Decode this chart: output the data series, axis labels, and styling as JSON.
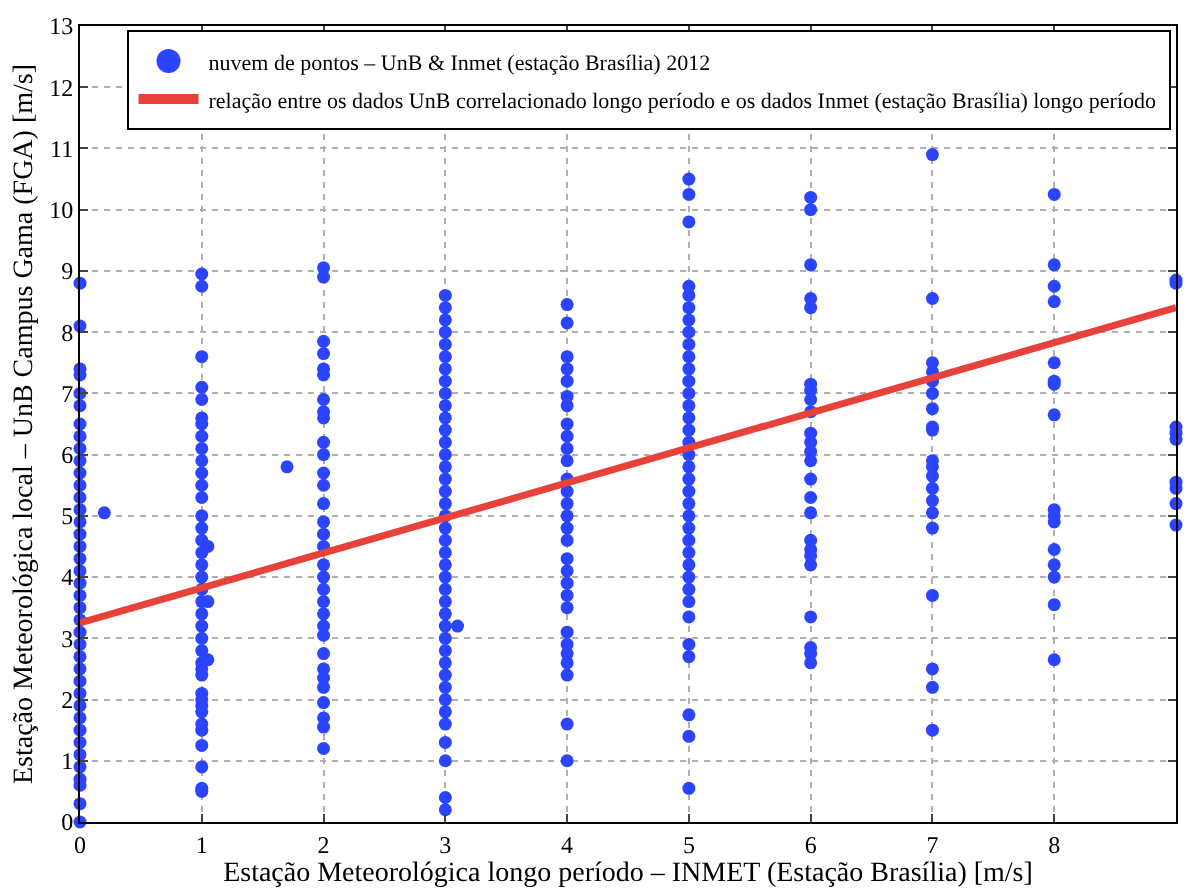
{
  "chart_data": {
    "type": "scatter",
    "xlabel": "Estação Meteorológica longo período – INMET (Estação Brasília) [m/s]",
    "ylabel": "Estação Meteorológica local – UnB Campus Gama (FGA) [m/s]",
    "xlim": [
      0,
      9
    ],
    "xticks": [
      0,
      1,
      2,
      3,
      4,
      5,
      6,
      7,
      8
    ],
    "ylim": [
      0,
      13
    ],
    "yticks": [
      0,
      1,
      2,
      3,
      4,
      5,
      6,
      7,
      8,
      9,
      10,
      11,
      12,
      13
    ],
    "grid": true,
    "legend": "top right",
    "series": [
      {
        "name": "nuvem de pontos – UnB & Inmet (estação Brasília) 2012",
        "marker": "circle",
        "color": "#2b44ff",
        "x": [
          0,
          0,
          0,
          0,
          0,
          0,
          0,
          0,
          0,
          0,
          0,
          0,
          0,
          0,
          0,
          0,
          0,
          0,
          0,
          0,
          0,
          0,
          0,
          0,
          0,
          0,
          0,
          0,
          0,
          0,
          0,
          0,
          0,
          0,
          0,
          0,
          0,
          0,
          0,
          0.2,
          1,
          1,
          1,
          1,
          1,
          1,
          1,
          1,
          1,
          1,
          1,
          1,
          1,
          1,
          1,
          1,
          1,
          1,
          1,
          1,
          1,
          1,
          1,
          1,
          1,
          1,
          1,
          1,
          1,
          1,
          1,
          1,
          1,
          1,
          1,
          1,
          1,
          1,
          1.05,
          1.05,
          1.05,
          1.7,
          2,
          2,
          2,
          2,
          2,
          2,
          2,
          2,
          2,
          2,
          2,
          2,
          2,
          2,
          2,
          2,
          2,
          2,
          2,
          2,
          2,
          2,
          2,
          2,
          2,
          2,
          2,
          2,
          2,
          2,
          2,
          2,
          3,
          3,
          3,
          3,
          3,
          3,
          3,
          3,
          3,
          3,
          3,
          3,
          3,
          3,
          3,
          3,
          3,
          3,
          3,
          3,
          3,
          3,
          3,
          3,
          3,
          3,
          3,
          3,
          3,
          3,
          3,
          3,
          3,
          3,
          3,
          3,
          3,
          3,
          3,
          3,
          3.1,
          4,
          4,
          4,
          4,
          4,
          4,
          4,
          4,
          4,
          4,
          4,
          4,
          4,
          4,
          4,
          4,
          4,
          4,
          4,
          4,
          4,
          4,
          4,
          4,
          4,
          4,
          4,
          4,
          4,
          5,
          5,
          5,
          5,
          5,
          5,
          5,
          5,
          5,
          5,
          5,
          5,
          5,
          5,
          5,
          5,
          5,
          5,
          5,
          5,
          5,
          5,
          5,
          5,
          5,
          5,
          5,
          5,
          5,
          5,
          5,
          5,
          5,
          5,
          5,
          5,
          6,
          6,
          6,
          6,
          6,
          6,
          6,
          6,
          6,
          6,
          6,
          6,
          6,
          6,
          6,
          6,
          6,
          6,
          6,
          6,
          6,
          6,
          6,
          6,
          7,
          7,
          7,
          7,
          7,
          7,
          7,
          7,
          7,
          7,
          7,
          7,
          7,
          7,
          7,
          7,
          7,
          7,
          7,
          7,
          8,
          8,
          8,
          8,
          8,
          8,
          8,
          8,
          8,
          8,
          8,
          8,
          8,
          8,
          8,
          8,
          9,
          9,
          9,
          9,
          9,
          9,
          9,
          9,
          9
        ],
        "values": [
          0,
          0.3,
          0.6,
          0.7,
          0.9,
          1.1,
          1.3,
          1.5,
          1.7,
          1.9,
          2.1,
          2.3,
          2.5,
          2.7,
          2.9,
          3.1,
          3.3,
          3.5,
          3.7,
          3.9,
          4.1,
          4.3,
          4.5,
          4.7,
          4.9,
          5.1,
          5.3,
          5.5,
          5.7,
          5.9,
          6.1,
          6.3,
          6.5,
          6.8,
          7.0,
          7.3,
          7.4,
          8.1,
          8.8,
          5.05,
          0.5,
          0.55,
          0.9,
          1.25,
          1.5,
          1.6,
          1.8,
          1.9,
          2.0,
          2.1,
          2.4,
          2.5,
          2.6,
          2.8,
          3.0,
          3.2,
          3.4,
          3.6,
          3.8,
          4.0,
          4.2,
          4.4,
          4.6,
          4.8,
          5.0,
          5.3,
          5.5,
          5.7,
          5.9,
          6.1,
          6.3,
          6.5,
          6.6,
          6.9,
          7.1,
          7.6,
          8.75,
          8.95,
          4.5,
          3.6,
          2.65,
          5.8,
          1.2,
          1.55,
          1.7,
          1.95,
          2.2,
          2.35,
          2.5,
          2.75,
          3.05,
          3.2,
          3.4,
          3.6,
          3.8,
          4.0,
          4.2,
          4.5,
          4.7,
          4.9,
          5.2,
          5.5,
          5.7,
          6.0,
          6.2,
          6.6,
          6.7,
          6.9,
          7.3,
          7.4,
          7.65,
          7.85,
          8.9,
          9.05,
          0.2,
          0.4,
          1.0,
          1.3,
          1.6,
          1.8,
          2.0,
          2.2,
          2.4,
          2.6,
          2.8,
          3.0,
          3.2,
          3.4,
          3.6,
          3.8,
          4.0,
          4.2,
          4.4,
          4.6,
          4.8,
          5.0,
          5.2,
          5.4,
          5.6,
          5.8,
          6.0,
          6.2,
          6.4,
          6.6,
          6.8,
          7.0,
          7.2,
          7.4,
          7.6,
          7.8,
          8.0,
          8.2,
          8.4,
          8.6,
          3.2,
          1.0,
          1.6,
          2.4,
          2.6,
          2.75,
          2.9,
          3.1,
          3.5,
          3.7,
          3.9,
          4.1,
          4.3,
          4.6,
          4.8,
          5.0,
          5.2,
          5.4,
          5.6,
          5.9,
          6.1,
          6.3,
          6.5,
          6.8,
          6.95,
          7.2,
          7.4,
          7.6,
          8.15,
          8.45,
          0.55,
          1.4,
          1.75,
          2.7,
          2.9,
          3.35,
          3.6,
          3.8,
          4.0,
          4.2,
          4.4,
          4.6,
          4.8,
          5.0,
          5.2,
          5.4,
          5.6,
          5.8,
          6.0,
          6.2,
          6.4,
          6.6,
          6.8,
          7.0,
          7.2,
          7.4,
          7.6,
          7.8,
          8.0,
          8.2,
          8.4,
          8.6,
          8.75,
          9.8,
          10.25,
          10.5,
          2.6,
          2.75,
          2.85,
          3.35,
          4.2,
          4.35,
          4.45,
          4.6,
          5.05,
          5.3,
          5.6,
          5.9,
          6.05,
          6.2,
          6.35,
          6.7,
          6.9,
          7.05,
          7.15,
          8.4,
          8.55,
          9.1,
          10.0,
          10.2,
          1.5,
          2.2,
          2.5,
          3.7,
          4.8,
          5.05,
          5.25,
          5.45,
          5.65,
          5.8,
          5.9,
          6.4,
          6.45,
          6.75,
          7.0,
          7.2,
          7.35,
          7.5,
          8.55,
          10.9,
          2.65,
          3.55,
          4.0,
          4.2,
          4.45,
          4.9,
          5.0,
          5.1,
          6.65,
          7.15,
          7.2,
          7.5,
          8.5,
          8.75,
          9.1,
          10.25,
          4.85,
          5.2,
          5.45,
          5.55,
          6.25,
          6.35,
          6.45,
          8.8,
          8.85
        ]
      },
      {
        "name": "relação entre os dados UnB correlacionado longo período e os dados Inmet (estação Brasília) longo período",
        "type": "line",
        "line_style": "solid",
        "color": "#e8413a",
        "x": [
          0,
          9
        ],
        "values": [
          3.25,
          8.4
        ]
      }
    ]
  }
}
